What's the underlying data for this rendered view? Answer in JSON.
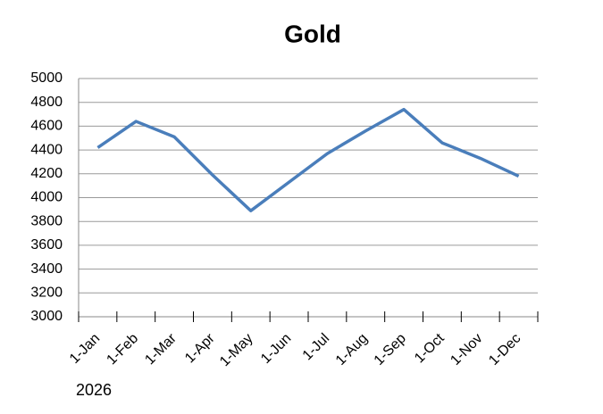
{
  "chart_data": {
    "type": "line",
    "title": "Gold",
    "note": "2026",
    "categories": [
      "1-Jan",
      "1-Feb",
      "1-Mar",
      "1-Apr",
      "1-May",
      "1-Jun",
      "1-Jul",
      "1-Aug",
      "1-Sep",
      "1-Oct",
      "1-Nov",
      "1-Dec"
    ],
    "values": [
      4420,
      4640,
      4510,
      4190,
      3890,
      4130,
      4370,
      4560,
      4740,
      4460,
      4330,
      4180
    ],
    "color": "#4a7ebb",
    "ylim": [
      3000,
      5000
    ],
    "yticks": [
      3000,
      3200,
      3400,
      3600,
      3800,
      4000,
      4200,
      4400,
      4600,
      4800,
      5000
    ],
    "grid": true
  }
}
